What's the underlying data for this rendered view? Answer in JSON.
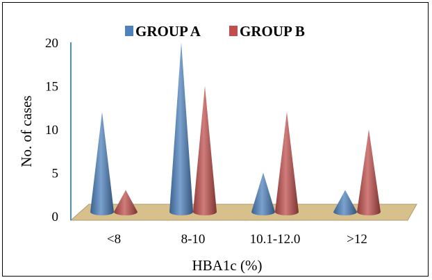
{
  "chart_data": {
    "type": "bar",
    "style": "3d-cone",
    "categories": [
      "<8",
      "8-10",
      "10.1-12.0",
      ">12"
    ],
    "series": [
      {
        "name": "GROUP A",
        "color": "#4f81bd",
        "values": [
          12,
          20,
          5,
          3
        ]
      },
      {
        "name": "GROUP B",
        "color": "#c0504d",
        "values": [
          3,
          15,
          12,
          10
        ]
      }
    ],
    "xlabel": "HBA1c (%)",
    "ylabel": "No. of cases",
    "ylim": [
      0,
      20
    ],
    "yticks": [
      0,
      5,
      10,
      15,
      20
    ],
    "grid": false,
    "legend": "top",
    "floor_color": "#d8c08c",
    "axis_color": "#4a90c8"
  }
}
